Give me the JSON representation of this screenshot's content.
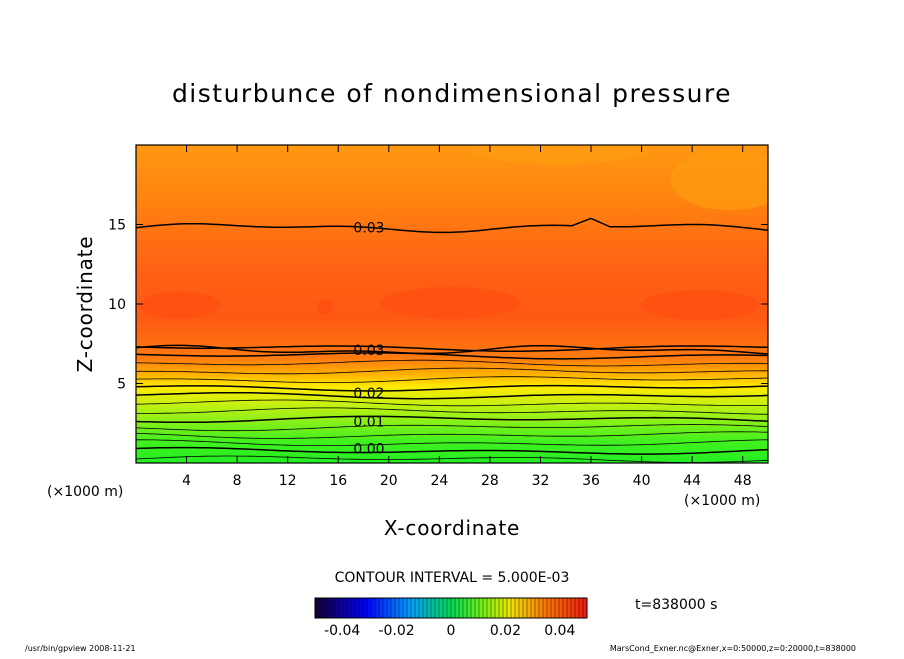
{
  "chart_data": {
    "type": "heatmap",
    "title": "disturbunce of nondimensional pressure",
    "xlabel": "X-coordinate",
    "ylabel": "Z-coordinate",
    "x_unit": "(×1000 m)",
    "y_unit": "(×1000 m)",
    "xlim": [
      0,
      50
    ],
    "ylim": [
      0,
      20
    ],
    "x_ticks": [
      4,
      8,
      12,
      16,
      20,
      24,
      28,
      32,
      36,
      40,
      44,
      48
    ],
    "y_ticks": [
      5,
      10,
      15
    ],
    "contour_interval": "CONTOUR INTERVAL = 5.000E-03",
    "time_label": "t=838000 s",
    "colorbar": {
      "ticks": [
        "-0.04",
        "-0.02",
        "0",
        "0.02",
        "0.04"
      ],
      "range": [
        -0.05,
        0.05
      ]
    },
    "contour_labels": [
      {
        "text": "0.03",
        "x": 17.2,
        "z": 14.8
      },
      {
        "text": "0.03",
        "x": 17.2,
        "z": 7.1
      },
      {
        "text": "0.02",
        "x": 17.2,
        "z": 4.4
      },
      {
        "text": "0.01",
        "x": 17.2,
        "z": 2.6
      },
      {
        "text": "0.00",
        "x": 17.2,
        "z": 0.9
      }
    ],
    "value_profile": {
      "z": [
        0,
        1,
        2,
        3,
        4,
        5,
        6,
        7,
        8,
        9,
        10,
        11,
        12,
        13,
        14,
        15,
        16,
        17,
        18,
        19,
        20
      ],
      "value": [
        0.0,
        0.005,
        0.01,
        0.015,
        0.02,
        0.025,
        0.029,
        0.031,
        0.035,
        0.038,
        0.04,
        0.039,
        0.038,
        0.035,
        0.032,
        0.03,
        0.028,
        0.026,
        0.025,
        0.024,
        0.023
      ]
    }
  },
  "footer": {
    "left": "/usr/bin/gpview   2008-11-21",
    "right": "MarsCond_Exner.nc@Exner,x=0:50000,z=0:20000,t=838000"
  }
}
